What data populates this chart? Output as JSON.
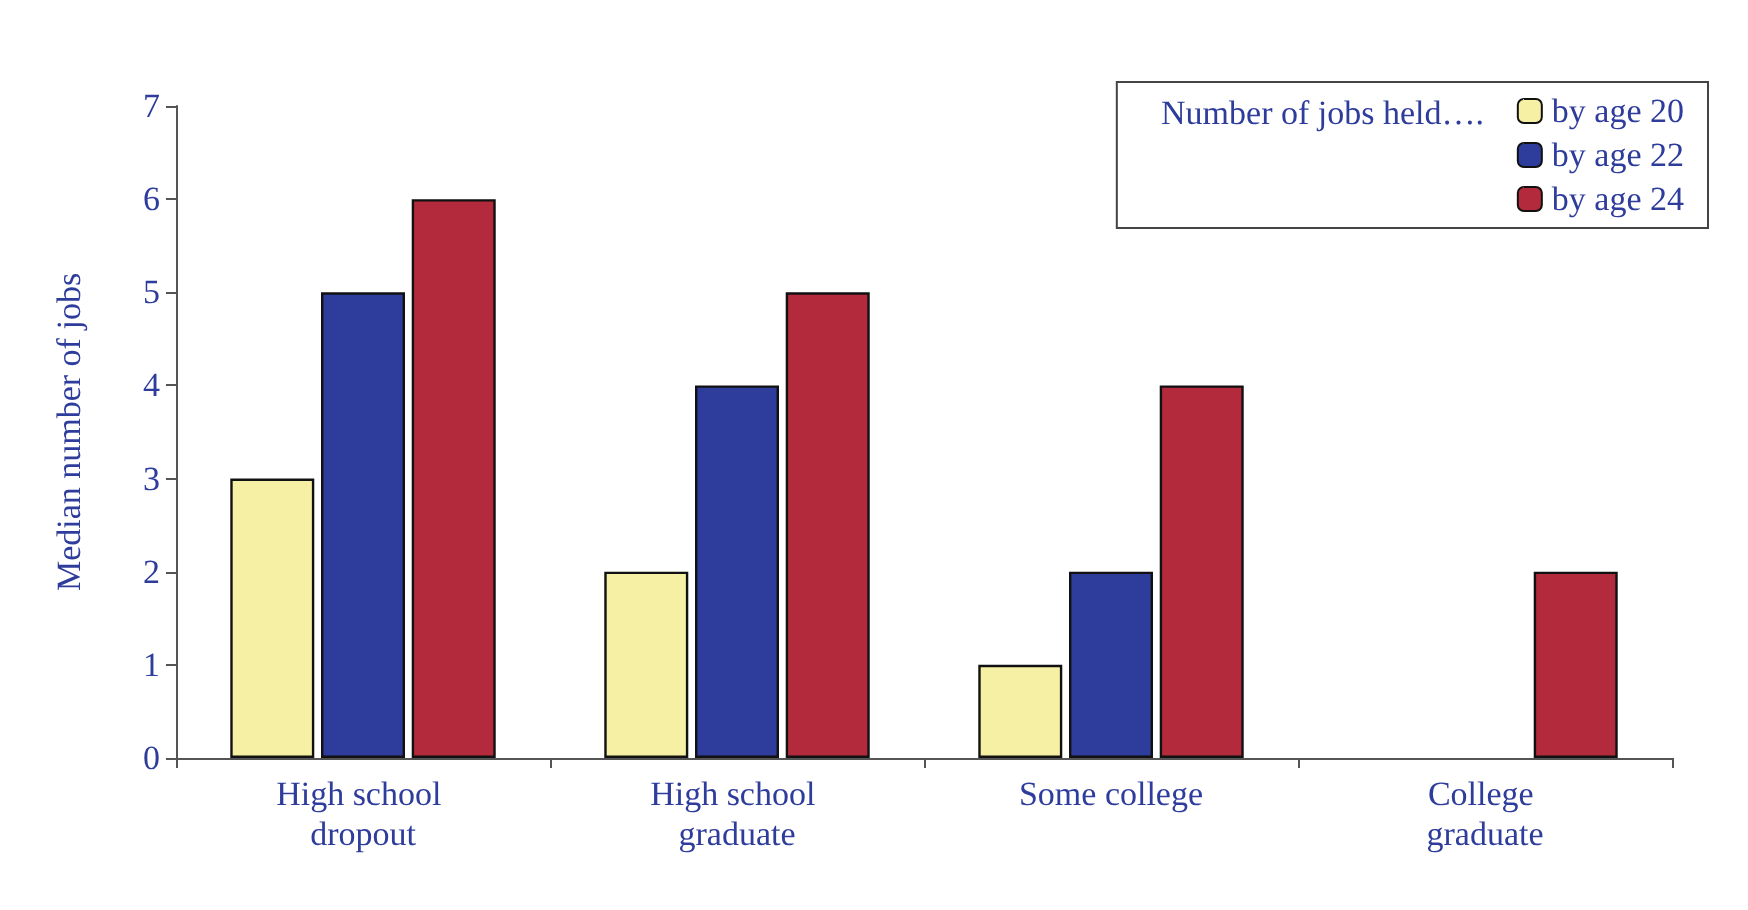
{
  "chart_data": {
    "type": "bar",
    "ylabel": "Median number of jobs",
    "legend_title": "Number of jobs held….",
    "categories": [
      "High school dropout",
      "High school graduate",
      "Some college",
      "College graduate"
    ],
    "series": [
      {
        "name": "by age 20",
        "color": "#f6f0a4",
        "values": [
          3,
          2,
          1,
          null
        ]
      },
      {
        "name": "by age 22",
        "color": "#2e3c9c",
        "values": [
          5,
          4,
          2,
          null
        ]
      },
      {
        "name": "by age 24",
        "color": "#b32a3c",
        "values": [
          6,
          5,
          4,
          2
        ]
      }
    ],
    "ylim": [
      0,
      7
    ],
    "yticks": [
      0,
      1,
      2,
      3,
      4,
      5,
      6,
      7
    ],
    "grid": false,
    "legend": "top right"
  }
}
